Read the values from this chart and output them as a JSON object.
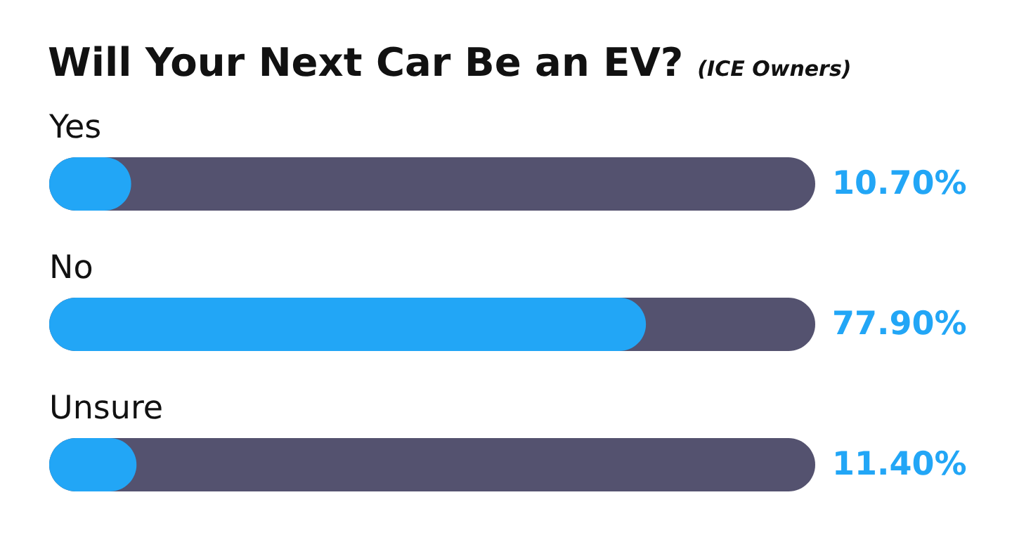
{
  "chart_data": {
    "type": "bar",
    "orientation": "horizontal",
    "title": "Will Your Next Car Be an EV?",
    "subtitle": "(ICE Owners)",
    "categories": [
      "Yes",
      "No",
      "Unsure"
    ],
    "values": [
      10.7,
      77.9,
      11.4
    ],
    "value_labels": [
      "10.70%",
      "77.90%",
      "11.40%"
    ],
    "color": "#22a6f6",
    "xlim": [
      0,
      100
    ],
    "tick_labels": false
  }
}
